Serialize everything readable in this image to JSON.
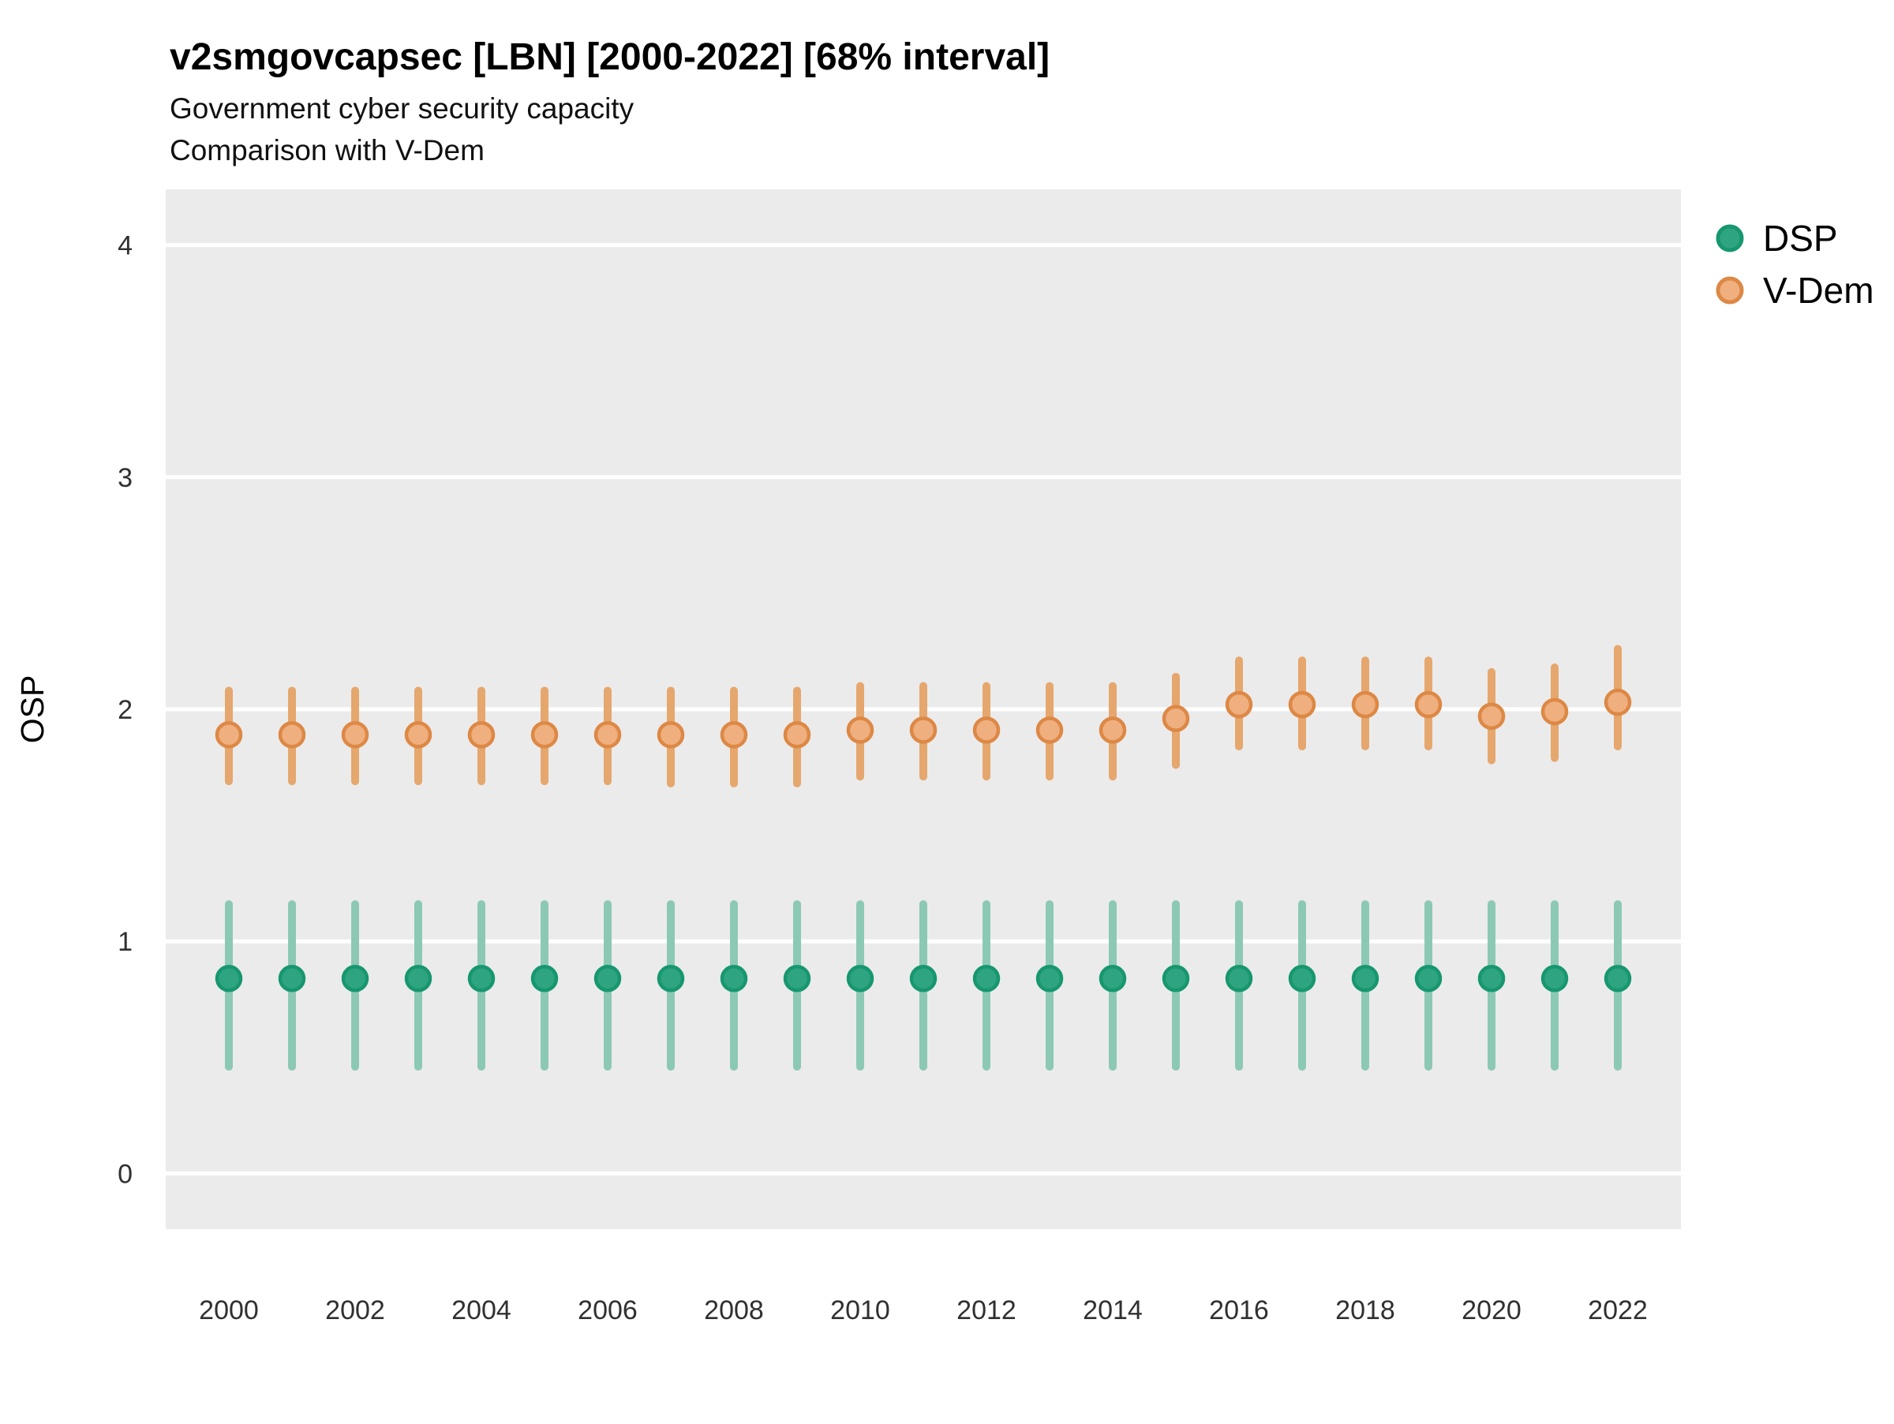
{
  "title": "v2smgovcapsec [LBN] [2000-2022] [68% interval]",
  "subtitle_line1": "Government cyber security capacity",
  "subtitle_line2": "Comparison with V-Dem",
  "axes": {
    "y_title": "OSP",
    "y_ticks": [
      0,
      1,
      2,
      3,
      4
    ],
    "x_ticks": [
      2000,
      2002,
      2004,
      2006,
      2008,
      2010,
      2012,
      2014,
      2016,
      2018,
      2020,
      2022
    ]
  },
  "legend": {
    "items": [
      {
        "key": "dsp",
        "label": "DSP"
      },
      {
        "key": "vdem",
        "label": "V-Dem"
      }
    ]
  },
  "colors": {
    "panel_bg": "#EBEBEB",
    "gridline": "#FFFFFF",
    "series": {
      "dsp": {
        "bar": "#8CC9B4",
        "point_fill": "#2FA480",
        "point_stroke": "#17976F"
      },
      "vdem": {
        "bar": "#E5A76D",
        "point_fill": "#EFAF7F",
        "point_stroke": "#DD8845"
      }
    }
  },
  "chart_data": {
    "type": "pointrange",
    "title": "v2smgovcapsec [LBN] [2000-2022] [68% interval]",
    "interval": "68%",
    "xlabel": "",
    "ylabel": "OSP",
    "ylim": [
      -0.24,
      4.24
    ],
    "grid": "major-horizontal-white-on-gray",
    "legend_position": "right-top",
    "x": [
      2000,
      2001,
      2002,
      2003,
      2004,
      2005,
      2006,
      2007,
      2008,
      2009,
      2010,
      2011,
      2012,
      2013,
      2014,
      2015,
      2016,
      2017,
      2018,
      2019,
      2020,
      2021,
      2022
    ],
    "series": [
      {
        "key": "dsp",
        "name": "DSP",
        "est": [
          0.84,
          0.84,
          0.84,
          0.84,
          0.84,
          0.84,
          0.84,
          0.84,
          0.84,
          0.84,
          0.84,
          0.84,
          0.84,
          0.84,
          0.84,
          0.84,
          0.84,
          0.84,
          0.84,
          0.84,
          0.84,
          0.84,
          0.84
        ],
        "lo": [
          0.46,
          0.46,
          0.46,
          0.46,
          0.46,
          0.46,
          0.46,
          0.46,
          0.46,
          0.46,
          0.46,
          0.46,
          0.46,
          0.46,
          0.46,
          0.46,
          0.46,
          0.46,
          0.46,
          0.46,
          0.46,
          0.46,
          0.46
        ],
        "hi": [
          1.16,
          1.16,
          1.16,
          1.16,
          1.16,
          1.16,
          1.16,
          1.16,
          1.16,
          1.16,
          1.16,
          1.16,
          1.16,
          1.16,
          1.16,
          1.16,
          1.16,
          1.16,
          1.16,
          1.16,
          1.16,
          1.16,
          1.16
        ]
      },
      {
        "key": "vdem",
        "name": "V-Dem",
        "est": [
          1.89,
          1.89,
          1.89,
          1.89,
          1.89,
          1.89,
          1.89,
          1.89,
          1.89,
          1.89,
          1.91,
          1.91,
          1.91,
          1.91,
          1.91,
          1.96,
          2.02,
          2.02,
          2.02,
          2.02,
          1.97,
          1.99,
          2.03
        ],
        "lo": [
          1.69,
          1.69,
          1.69,
          1.69,
          1.69,
          1.69,
          1.69,
          1.68,
          1.68,
          1.68,
          1.71,
          1.71,
          1.71,
          1.71,
          1.71,
          1.76,
          1.84,
          1.84,
          1.84,
          1.84,
          1.78,
          1.79,
          1.84
        ],
        "hi": [
          2.08,
          2.08,
          2.08,
          2.08,
          2.08,
          2.08,
          2.08,
          2.08,
          2.08,
          2.08,
          2.1,
          2.1,
          2.1,
          2.1,
          2.1,
          2.14,
          2.21,
          2.21,
          2.21,
          2.21,
          2.16,
          2.18,
          2.26
        ]
      }
    ]
  }
}
